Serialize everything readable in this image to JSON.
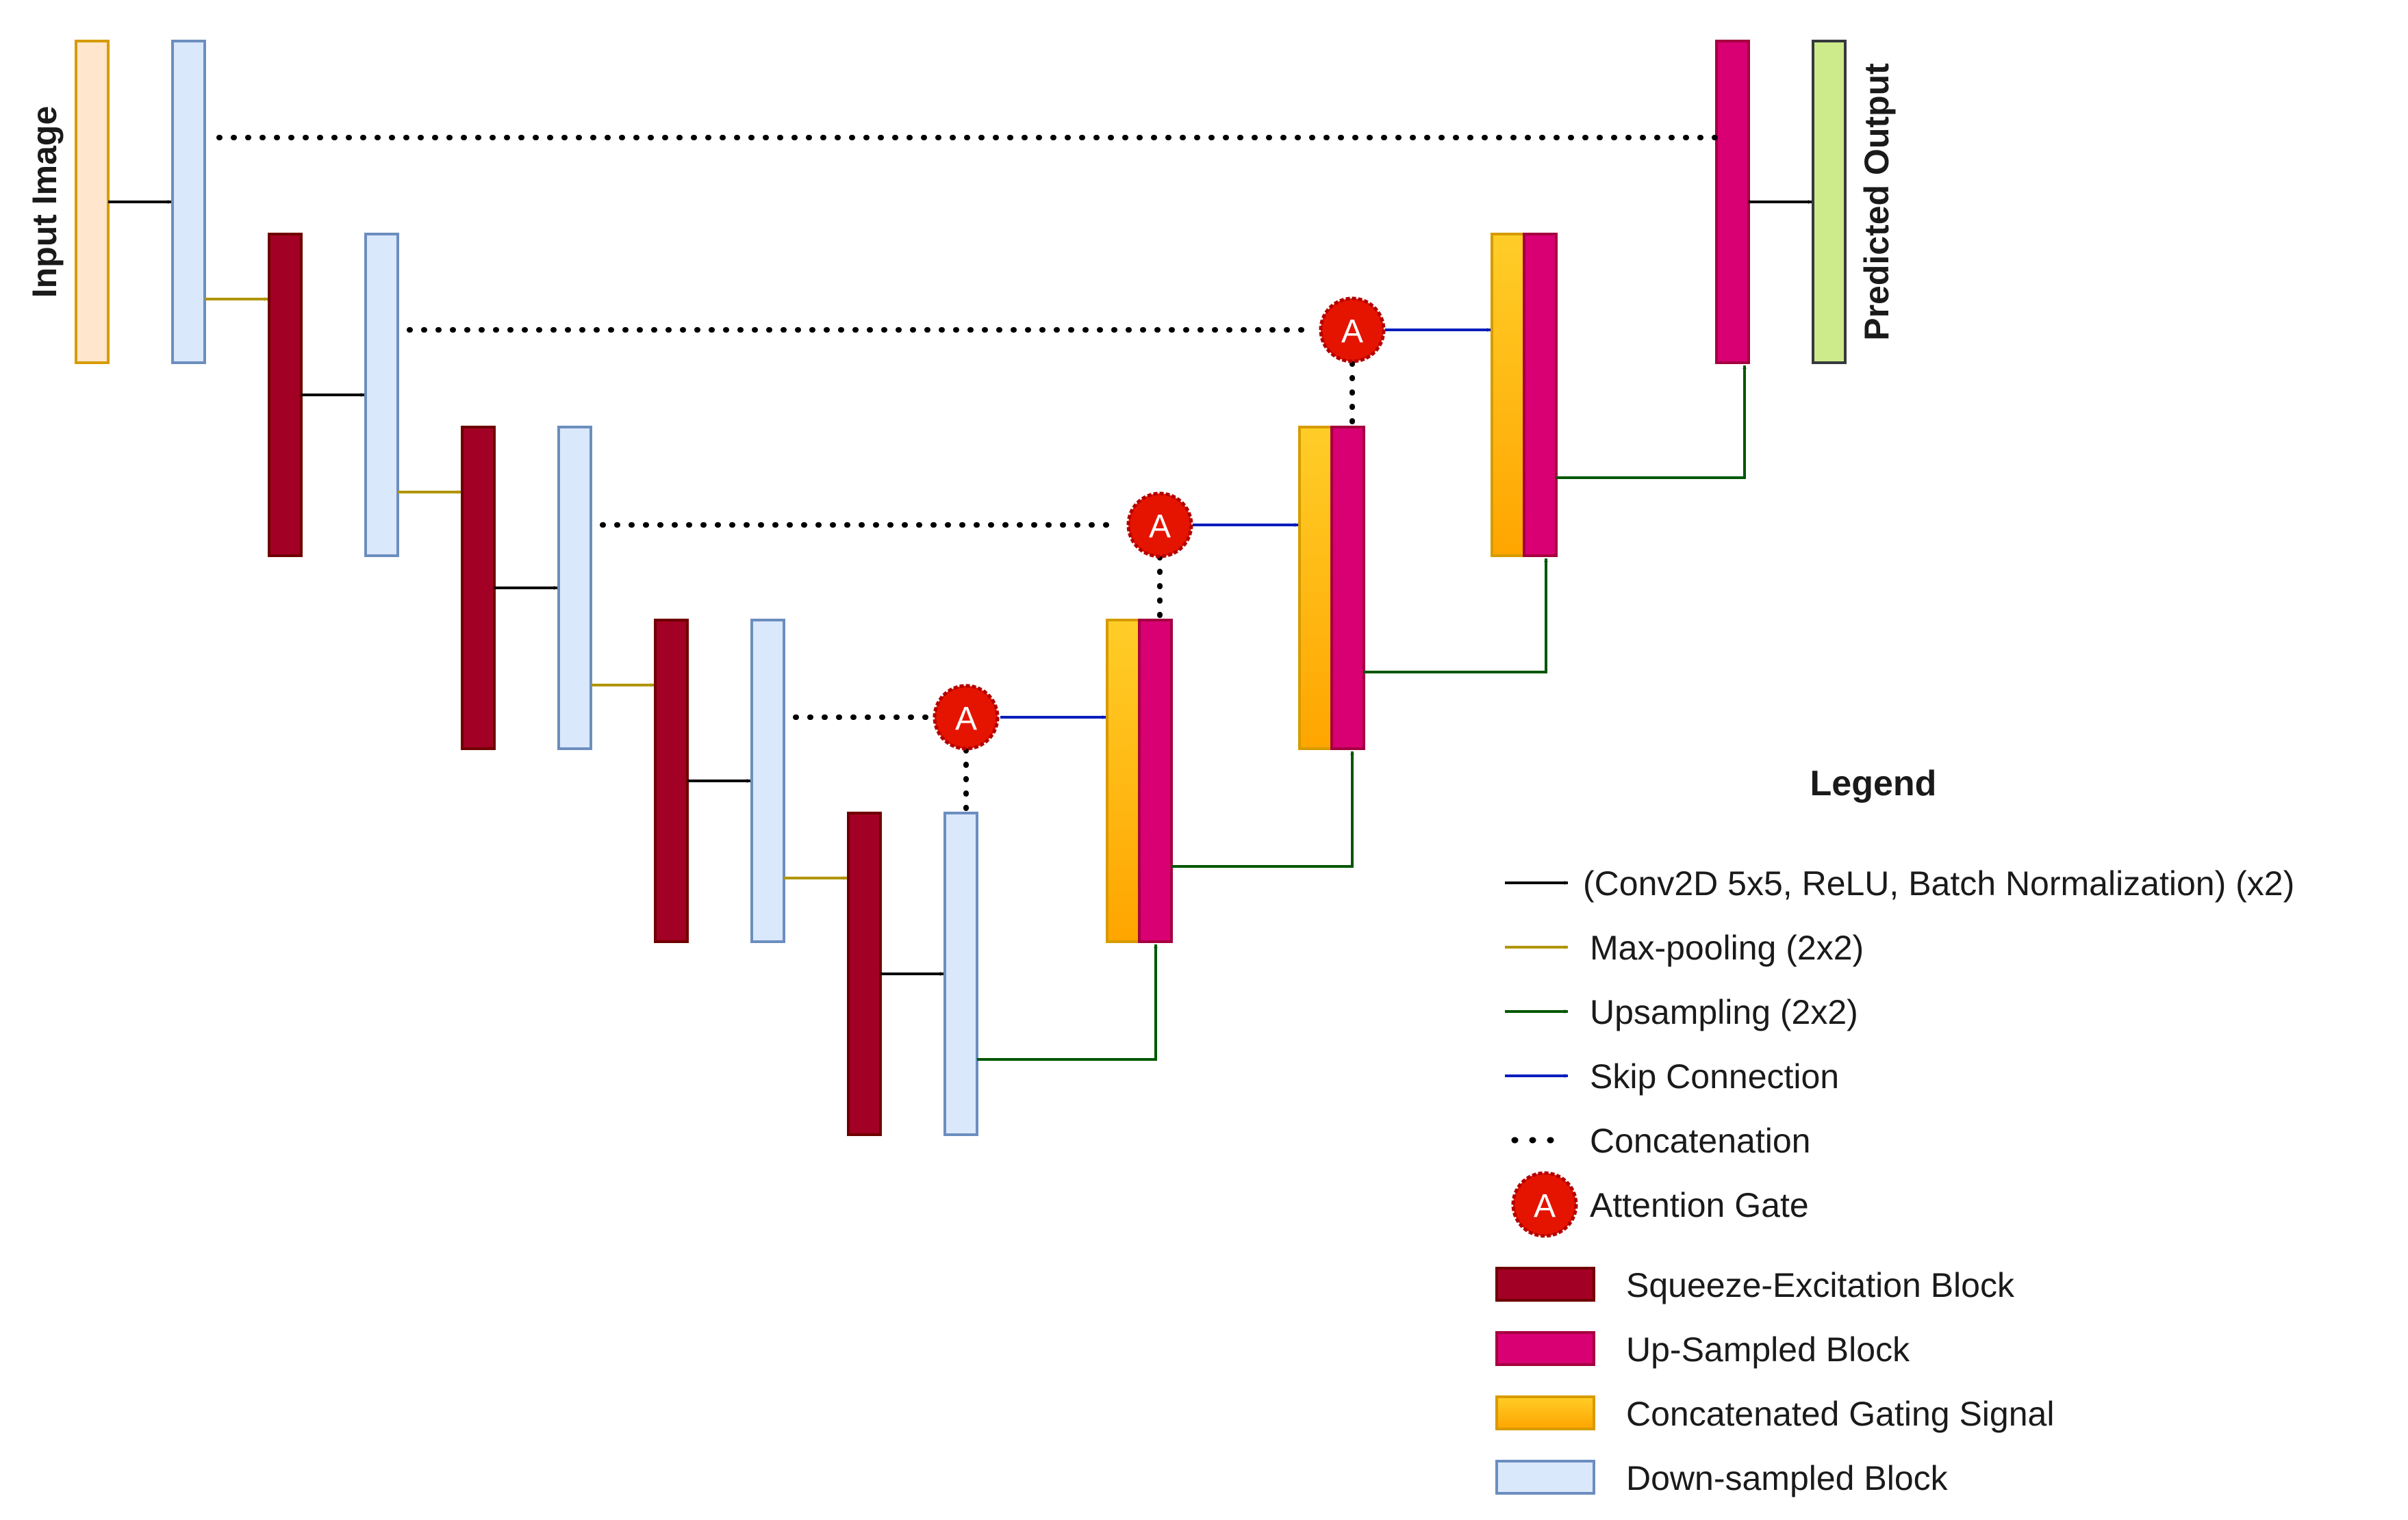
{
  "labels": {
    "input": "Input Image",
    "output": "Predicted Output",
    "attention": "A"
  },
  "legend": {
    "title": "Legend",
    "conv": "(Conv2D 5x5, ReLU, Batch Normalization) (x2)",
    "maxpool": "Max-pooling (2x2)",
    "upsample": "Upsampling (2x2)",
    "skip": "Skip Connection",
    "concat": "Concatenation",
    "attention": "Attention Gate",
    "attention_symbol": "A",
    "se_block": "Squeeze-Excitation Block",
    "up_block": "Up-Sampled Block",
    "gating": "Concatenated Gating Signal",
    "down_block": "Down-sampled Block"
  },
  "colors": {
    "input_fill": "#ffe6cc",
    "input_stroke": "#d79b00",
    "down_fill": "#dae8fc",
    "down_stroke": "#6c8ebf",
    "se_fill": "#a20025",
    "se_stroke": "#6f0000",
    "up_fill": "#d80073",
    "up_stroke": "#a50040",
    "gating_top": "#ffcd28",
    "gating_bottom": "#ffa500",
    "gating_stroke": "#d79b00",
    "output_fill": "#cdeb8b",
    "output_stroke": "#36393d",
    "conv_arrow": "#000000",
    "maxpool_arrow": "#b09500",
    "upsample_arrow": "#005700",
    "skip_arrow": "#001dbc",
    "attention_fill": "#e51400",
    "attention_stroke": "#b20000"
  }
}
